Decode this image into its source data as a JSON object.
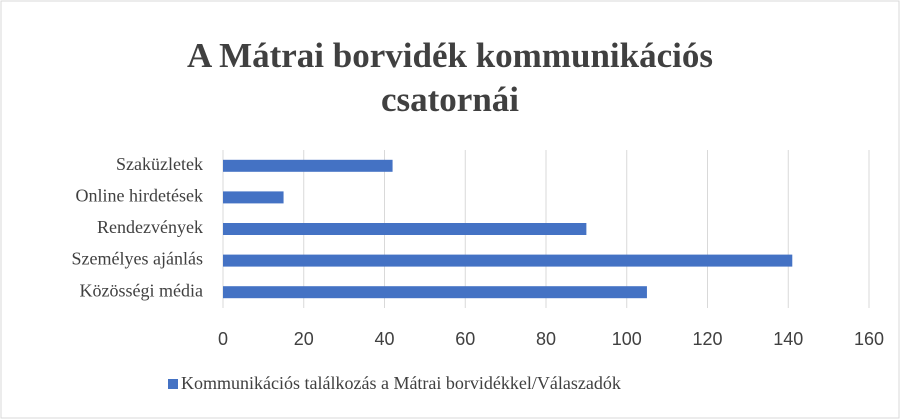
{
  "chart_data": {
    "type": "bar",
    "orientation": "horizontal",
    "title": "A Mátrai borvidék kommunikációs csatornái",
    "categories": [
      "Szaküzletek",
      "Online hirdetések",
      "Rendezvények",
      "Személyes ajánlás",
      "Közösségi média"
    ],
    "series": [
      {
        "name": "Kommunikációs találkozás a Mátrai borvidékkel/Válaszadók",
        "color": "#4472c4",
        "values": [
          42,
          15,
          90,
          141,
          105
        ]
      }
    ],
    "xlim": [
      0,
      160
    ],
    "xticks": [
      0,
      20,
      40,
      60,
      80,
      100,
      120,
      140,
      160
    ],
    "grid": true,
    "legend": "bottom"
  }
}
